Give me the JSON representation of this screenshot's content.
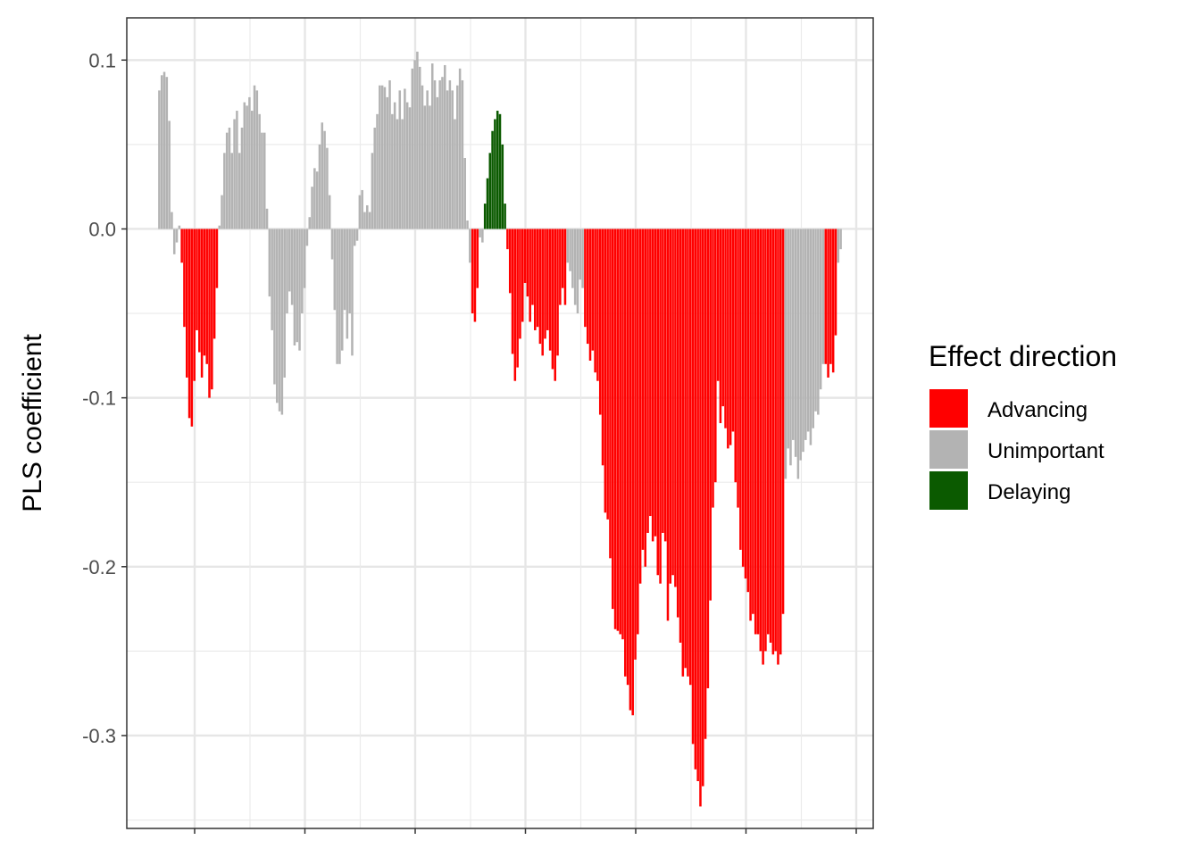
{
  "chart_data": {
    "type": "bar",
    "ylabel": "PLS coefficient",
    "xlabel": "",
    "ylim": [
      -0.355,
      0.125
    ],
    "y_ticks": [
      {
        "value": 0.1,
        "label": "0.1"
      },
      {
        "value": 0.0,
        "label": "0.0"
      },
      {
        "value": -0.1,
        "label": "-0.1"
      },
      {
        "value": -0.2,
        "label": "-0.2"
      },
      {
        "value": -0.3,
        "label": "-0.3"
      }
    ],
    "grid": true,
    "legend": {
      "title": "Effect direction",
      "position": "right",
      "entries": [
        {
          "label": "Advancing",
          "color": "#FF0000"
        },
        {
          "label": "Unimportant",
          "color": "#B3B3B3"
        },
        {
          "label": "Delaying",
          "color": "#0B5A00"
        }
      ]
    },
    "colors": {
      "Advancing": "#FF0000",
      "Unimportant": "#B3B3B3",
      "Delaying": "#0B5A00"
    },
    "segments": [
      {
        "category": "Unimportant",
        "values": [
          0.082,
          0.091,
          0.093,
          0.09,
          0.064,
          0.01,
          -0.015,
          -0.008,
          0.002
        ]
      },
      {
        "category": "Advancing",
        "values": [
          -0.02,
          -0.058,
          -0.088,
          -0.112,
          -0.117,
          -0.09,
          -0.06,
          -0.073,
          -0.088,
          -0.075,
          -0.08,
          -0.1,
          -0.095,
          -0.065,
          -0.035
        ]
      },
      {
        "category": "Unimportant",
        "values": [
          0.002,
          0.02,
          0.045,
          0.057,
          0.06,
          0.045,
          0.065,
          0.07,
          0.045,
          0.06,
          0.075,
          0.073,
          0.078,
          0.07,
          0.085,
          0.082,
          0.068,
          0.057,
          0.057,
          0.012,
          -0.04,
          -0.06,
          -0.092,
          -0.103,
          -0.108,
          -0.11,
          -0.088,
          -0.05,
          -0.037,
          -0.045,
          -0.069,
          -0.067,
          -0.072,
          -0.05,
          -0.035,
          -0.01,
          0.007,
          0.025,
          0.036,
          0.034,
          0.05,
          0.063,
          0.058,
          0.048,
          0.02,
          -0.018,
          -0.048,
          -0.08,
          -0.08,
          -0.072,
          -0.048,
          -0.065,
          -0.05,
          -0.075,
          -0.01,
          -0.007,
          0.02,
          0.023,
          0.01,
          0.014,
          0.01,
          0.045,
          0.06,
          0.068,
          0.085,
          0.085,
          0.084,
          0.078,
          0.088,
          0.068,
          0.075,
          0.065,
          0.082,
          0.065,
          0.083,
          0.075,
          0.072,
          0.095,
          0.1,
          0.105,
          0.096,
          0.085,
          0.073,
          0.082,
          0.073,
          0.098,
          0.088,
          0.078,
          0.088,
          0.09,
          0.097,
          0.082,
          0.088,
          0.082,
          0.065,
          0.085,
          0.095,
          0.088,
          0.042,
          0.005,
          -0.02
        ]
      },
      {
        "category": "Advancing",
        "values": [
          -0.05,
          -0.055,
          -0.035
        ]
      },
      {
        "category": "Unimportant",
        "values": [
          -0.005,
          -0.008
        ]
      },
      {
        "category": "Delaying",
        "values": [
          0.015,
          0.03,
          0.045,
          0.058,
          0.065,
          0.07,
          0.068,
          0.05,
          0.015
        ]
      },
      {
        "category": "Advancing",
        "values": [
          -0.012,
          -0.038,
          -0.074,
          -0.09,
          -0.082,
          -0.065,
          -0.055,
          -0.032,
          -0.04,
          -0.055,
          -0.045,
          -0.06,
          -0.058,
          -0.068,
          -0.075,
          -0.065,
          -0.06,
          -0.072,
          -0.083,
          -0.09,
          -0.075,
          -0.045,
          -0.035,
          -0.045
        ]
      },
      {
        "category": "Unimportant",
        "values": [
          -0.02,
          -0.025,
          -0.035,
          -0.045,
          -0.05,
          -0.03,
          -0.035
        ]
      },
      {
        "category": "Advancing",
        "values": [
          -0.058,
          -0.068,
          -0.078,
          -0.072,
          -0.085,
          -0.09,
          -0.11,
          -0.14,
          -0.168,
          -0.172,
          -0.195,
          -0.225,
          -0.237,
          -0.238,
          -0.24,
          -0.243,
          -0.265,
          -0.27,
          -0.285,
          -0.288,
          -0.255,
          -0.24,
          -0.21,
          -0.19,
          -0.2,
          -0.18,
          -0.17,
          -0.185,
          -0.182,
          -0.205,
          -0.21,
          -0.18,
          -0.185,
          -0.232,
          -0.21,
          -0.205,
          -0.212,
          -0.23,
          -0.245,
          -0.265,
          -0.26,
          -0.265,
          -0.27,
          -0.305,
          -0.32,
          -0.327,
          -0.342,
          -0.33,
          -0.302,
          -0.272,
          -0.22,
          -0.165,
          -0.15,
          -0.09,
          -0.115,
          -0.105,
          -0.118,
          -0.13,
          -0.128,
          -0.12,
          -0.15,
          -0.165,
          -0.19,
          -0.2,
          -0.207,
          -0.215,
          -0.232,
          -0.228,
          -0.24,
          -0.24,
          -0.25,
          -0.258,
          -0.25,
          -0.24,
          -0.245,
          -0.252,
          -0.25,
          -0.258,
          -0.252,
          -0.228
        ]
      },
      {
        "category": "Unimportant",
        "values": [
          -0.148,
          -0.13,
          -0.14,
          -0.125,
          -0.135,
          -0.148,
          -0.137,
          -0.132,
          -0.125,
          -0.12,
          -0.128,
          -0.118,
          -0.108,
          -0.11,
          -0.095,
          -0.08
        ]
      },
      {
        "category": "Advancing",
        "values": [
          -0.08,
          -0.088,
          -0.08,
          -0.085,
          -0.063
        ]
      },
      {
        "category": "Unimportant",
        "values": [
          -0.02,
          -0.012
        ]
      }
    ]
  }
}
